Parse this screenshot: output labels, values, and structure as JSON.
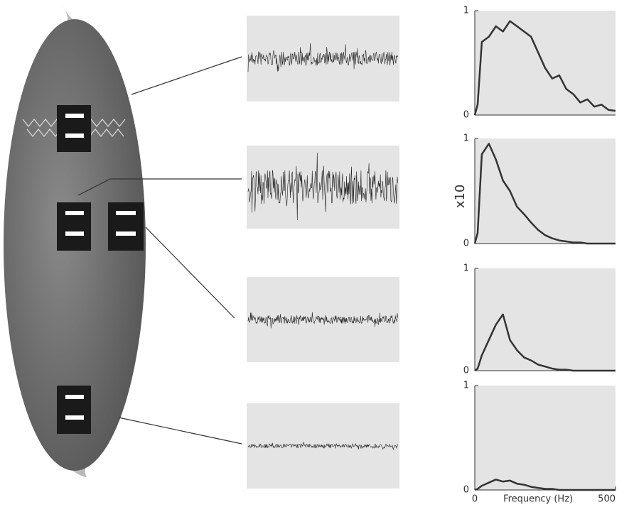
{
  "chart_data": [
    {
      "type": "line",
      "x": [
        0,
        10,
        25,
        50,
        75,
        100,
        125,
        150,
        175,
        200,
        225,
        250,
        275,
        300,
        325,
        350,
        375,
        400,
        425,
        450,
        475,
        500
      ],
      "series": [
        {
          "color": "#333333",
          "values": [
            0,
            0.1,
            0.7,
            0.75,
            0.85,
            0.8,
            0.9,
            0.85,
            0.8,
            0.75,
            0.6,
            0.45,
            0.35,
            0.38,
            0.25,
            0.2,
            0.12,
            0.15,
            0.08,
            0.1,
            0.05,
            0.04
          ]
        }
      ],
      "xlim": [
        0,
        500
      ],
      "ylim": [
        0,
        1
      ],
      "yticks": [
        0,
        1
      ]
    },
    {
      "type": "line",
      "x": [
        0,
        10,
        25,
        50,
        75,
        100,
        125,
        150,
        175,
        200,
        225,
        250,
        275,
        300,
        325,
        350,
        375,
        400,
        425,
        450,
        475,
        500
      ],
      "series": [
        {
          "color": "#333333",
          "values": [
            0,
            0.1,
            0.85,
            0.95,
            0.8,
            0.6,
            0.5,
            0.35,
            0.28,
            0.2,
            0.13,
            0.08,
            0.05,
            0.03,
            0.02,
            0.01,
            0.01,
            0,
            0,
            0,
            0,
            0
          ]
        }
      ],
      "xlim": [
        0,
        500
      ],
      "ylim": [
        0,
        1
      ],
      "yticks": [
        0,
        1
      ],
      "ylabel": "x10"
    },
    {
      "type": "line",
      "x": [
        0,
        10,
        25,
        50,
        75,
        100,
        125,
        150,
        175,
        200,
        225,
        250,
        275,
        300,
        325,
        350,
        375,
        400,
        425,
        450,
        475,
        500
      ],
      "series": [
        {
          "color": "#333333",
          "values": [
            0,
            0.02,
            0.15,
            0.3,
            0.45,
            0.55,
            0.3,
            0.2,
            0.13,
            0.1,
            0.06,
            0.04,
            0.02,
            0.01,
            0.01,
            0,
            0,
            0,
            0,
            0,
            0,
            0
          ]
        }
      ],
      "xlim": [
        0,
        500
      ],
      "ylim": [
        0,
        1
      ],
      "yticks": [
        0,
        1
      ]
    },
    {
      "type": "line",
      "x": [
        0,
        10,
        25,
        50,
        75,
        100,
        125,
        150,
        175,
        200,
        225,
        250,
        275,
        300,
        325,
        350,
        375,
        400,
        425,
        450,
        475,
        500
      ],
      "series": [
        {
          "color": "#333333",
          "values": [
            0,
            0.01,
            0.04,
            0.07,
            0.1,
            0.08,
            0.09,
            0.06,
            0.05,
            0.03,
            0.02,
            0.01,
            0.01,
            0,
            0,
            0,
            0,
            0,
            0,
            0,
            0,
            0
          ]
        }
      ],
      "xlim": [
        0,
        500
      ],
      "ylim": [
        0,
        1
      ],
      "yticks": [
        0,
        1
      ],
      "xticks": [
        0,
        500
      ],
      "xlabel": "Frequency (Hz)"
    }
  ]
}
